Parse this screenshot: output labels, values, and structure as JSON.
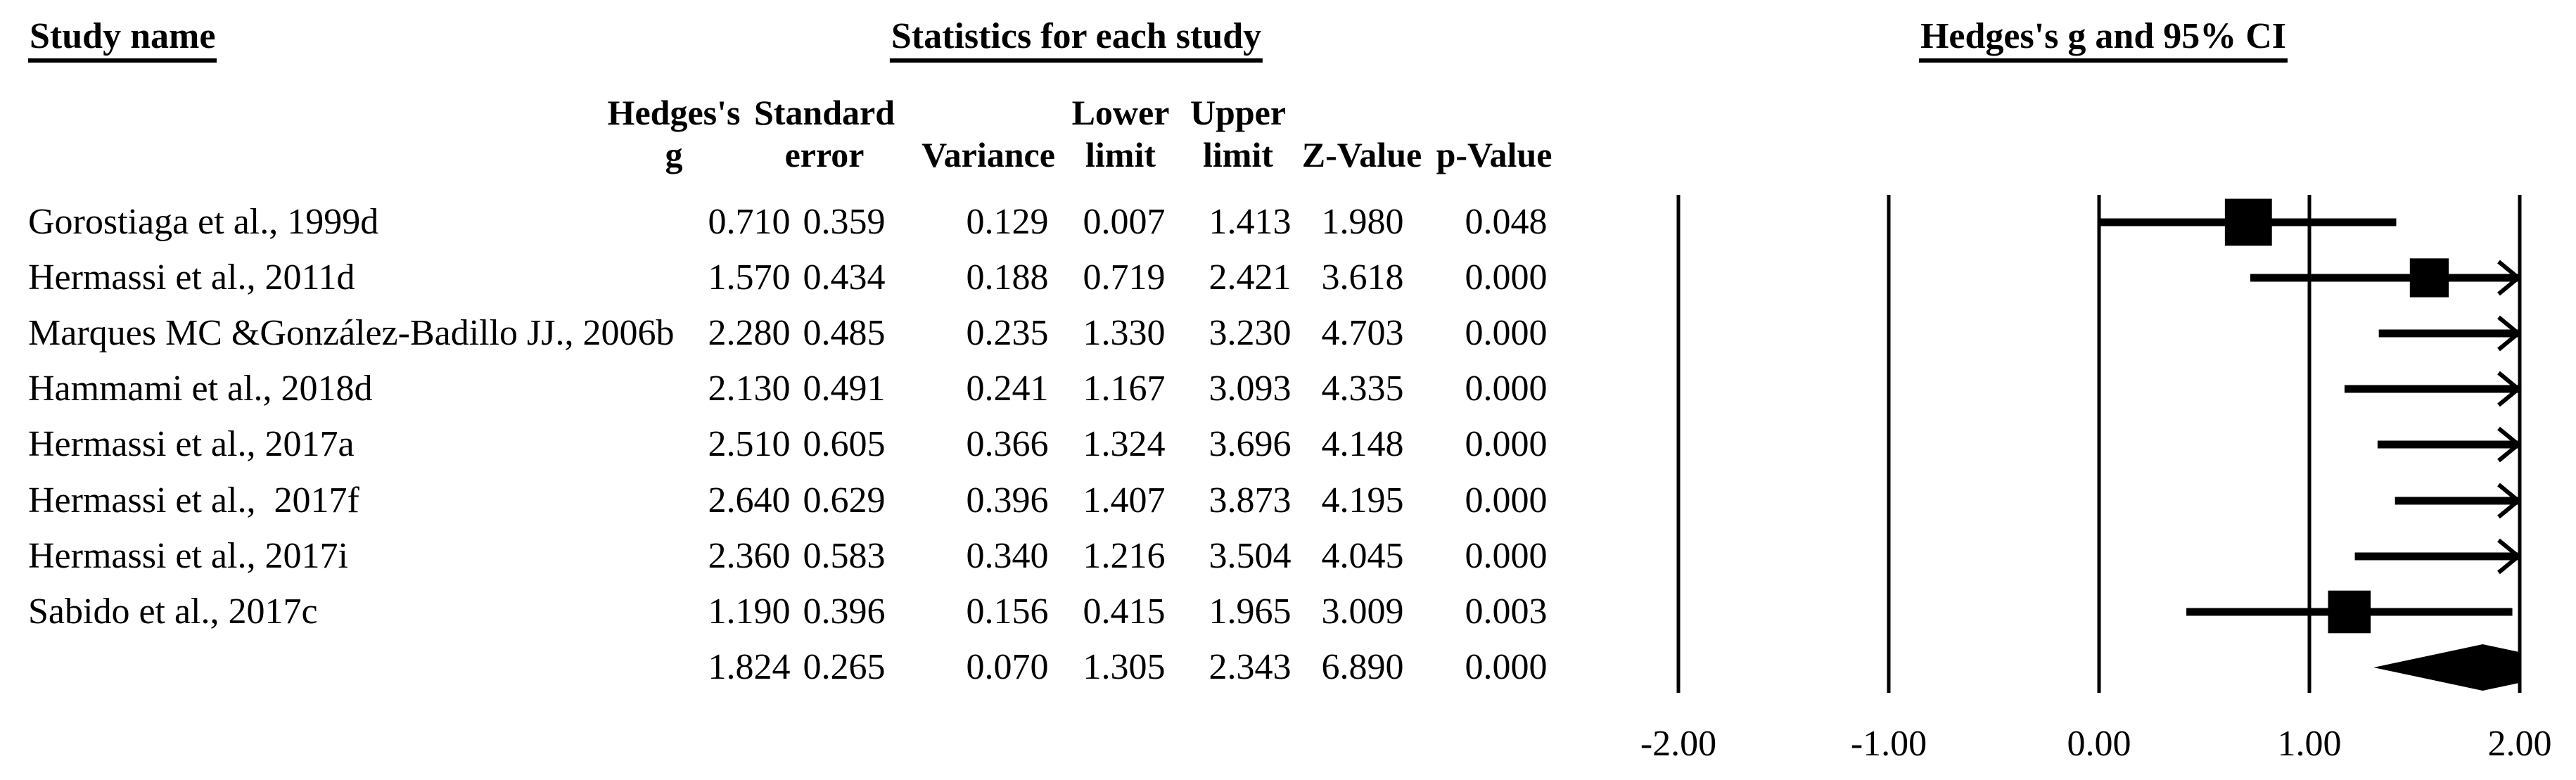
{
  "page": {
    "background": "#ffffff",
    "ink": "#000000"
  },
  "titles": {
    "study_column": "Study name",
    "stats_section": "Statistics for each study",
    "plot_section": "Hedges's g and 95% CI"
  },
  "table": {
    "columns": [
      {
        "key": "g",
        "header_lines": [
          "Hedges's",
          "g"
        ]
      },
      {
        "key": "se",
        "header_lines": [
          "Standard",
          "error"
        ]
      },
      {
        "key": "variance",
        "header_lines": [
          "",
          "Variance"
        ]
      },
      {
        "key": "lower",
        "header_lines": [
          "Lower",
          "limit"
        ]
      },
      {
        "key": "upper",
        "header_lines": [
          "Upper",
          "limit"
        ]
      },
      {
        "key": "z",
        "header_lines": [
          "",
          "Z-Value"
        ]
      },
      {
        "key": "p",
        "header_lines": [
          "",
          "p-Value"
        ]
      }
    ]
  },
  "chart_data": {
    "type": "forest",
    "title": "Hedges's g and 95% CI",
    "effect_measure": "Hedges's g",
    "xlim": [
      -2,
      2
    ],
    "grid": false,
    "ticks": [
      {
        "value": -2,
        "label": "-2.00"
      },
      {
        "value": -1,
        "label": "-1.00"
      },
      {
        "value": 0,
        "label": "0.00"
      },
      {
        "value": 1,
        "label": "1.00"
      },
      {
        "value": 2,
        "label": "2.00"
      }
    ],
    "studies": [
      {
        "name": "Gorostiaga et al., 1999d",
        "g": "0.710",
        "se": "0.359",
        "variance": "0.129",
        "lower": "0.007",
        "upper": "1.413",
        "z": "1.980",
        "p": "0.048"
      },
      {
        "name": "Hermassi et al., 2011d",
        "g": "1.570",
        "se": "0.434",
        "variance": "0.188",
        "lower": "0.719",
        "upper": "2.421",
        "z": "3.618",
        "p": "0.000"
      },
      {
        "name": "Marques MC &González-Badillo JJ., 2006b",
        "g": "2.280",
        "se": "0.485",
        "variance": "0.235",
        "lower": "1.330",
        "upper": "3.230",
        "z": "4.703",
        "p": "0.000"
      },
      {
        "name": "Hammami et al., 2018d",
        "g": "2.130",
        "se": "0.491",
        "variance": "0.241",
        "lower": "1.167",
        "upper": "3.093",
        "z": "4.335",
        "p": "0.000"
      },
      {
        "name": "Hermassi et al., 2017a",
        "g": "2.510",
        "se": "0.605",
        "variance": "0.366",
        "lower": "1.324",
        "upper": "3.696",
        "z": "4.148",
        "p": "0.000"
      },
      {
        "name": "Hermassi et al.,  2017f",
        "g": "2.640",
        "se": "0.629",
        "variance": "0.396",
        "lower": "1.407",
        "upper": "3.873",
        "z": "4.195",
        "p": "0.000"
      },
      {
        "name": "Hermassi et al., 2017i",
        "g": "2.360",
        "se": "0.583",
        "variance": "0.340",
        "lower": "1.216",
        "upper": "3.504",
        "z": "4.045",
        "p": "0.000"
      },
      {
        "name": "Sabido et al., 2017c",
        "g": "1.190",
        "se": "0.396",
        "variance": "0.156",
        "lower": "0.415",
        "upper": "1.965",
        "z": "3.009",
        "p": "0.003"
      }
    ],
    "summary": {
      "name": "",
      "g": "1.824",
      "se": "0.265",
      "variance": "0.070",
      "lower": "1.305",
      "upper": "2.343",
      "z": "6.890",
      "p": "0.000"
    }
  }
}
